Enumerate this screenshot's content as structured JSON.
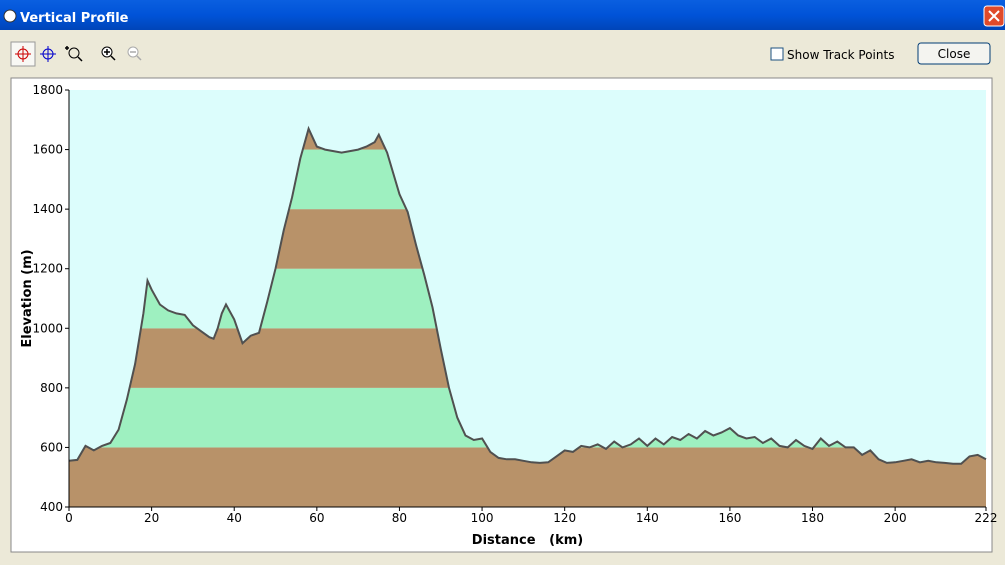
{
  "window": {
    "title": "Vertical Profile",
    "checkbox_label": "Show Track Points",
    "close_button": "Close"
  },
  "chart_data": {
    "type": "area",
    "xlabel": "Distance   (km)",
    "ylabel": "Elevation (m)",
    "x": [
      0,
      2,
      4,
      6,
      8,
      10,
      12,
      14,
      16,
      18,
      19,
      20,
      22,
      24,
      26,
      28,
      30,
      32,
      34,
      35,
      36,
      37,
      38,
      40,
      42,
      44,
      46,
      48,
      50,
      52,
      54,
      56,
      58,
      60,
      62,
      64,
      66,
      68,
      70,
      72,
      74,
      75,
      77,
      80,
      82,
      84,
      86,
      88,
      90,
      92,
      94,
      96,
      98,
      100,
      102,
      104,
      106,
      108,
      110,
      112,
      114,
      116,
      118,
      120,
      122,
      124,
      126,
      128,
      130,
      132,
      134,
      136,
      138,
      140,
      142,
      144,
      146,
      148,
      150,
      152,
      154,
      156,
      158,
      160,
      162,
      164,
      166,
      168,
      170,
      172,
      174,
      176,
      178,
      180,
      182,
      184,
      186,
      188,
      190,
      192,
      194,
      196,
      198,
      200,
      202,
      204,
      206,
      208,
      210,
      212,
      214,
      216,
      218,
      220,
      222
    ],
    "values": [
      555,
      558,
      605,
      590,
      605,
      615,
      660,
      760,
      880,
      1050,
      1160,
      1130,
      1080,
      1060,
      1050,
      1045,
      1010,
      990,
      970,
      965,
      1000,
      1050,
      1080,
      1030,
      950,
      975,
      985,
      1090,
      1200,
      1330,
      1440,
      1570,
      1670,
      1610,
      1600,
      1595,
      1590,
      1595,
      1600,
      1610,
      1625,
      1650,
      1590,
      1450,
      1390,
      1280,
      1180,
      1070,
      930,
      800,
      700,
      640,
      625,
      630,
      585,
      565,
      560,
      560,
      555,
      550,
      548,
      550,
      570,
      590,
      585,
      605,
      600,
      610,
      595,
      620,
      600,
      610,
      630,
      605,
      630,
      610,
      635,
      625,
      645,
      630,
      655,
      640,
      650,
      665,
      640,
      630,
      635,
      615,
      630,
      605,
      600,
      625,
      605,
      595,
      630,
      605,
      620,
      600,
      600,
      575,
      590,
      560,
      548,
      550,
      555,
      560,
      550,
      555,
      550,
      548,
      545,
      545,
      570,
      575,
      560
    ],
    "line_color": "#505050",
    "band_colors": [
      "#b89269",
      "#9ef0c0"
    ],
    "background": "#dcfdfc",
    "xlim": [
      0,
      222
    ],
    "ylim": [
      400,
      1800
    ],
    "xticks": [
      0,
      20,
      40,
      60,
      80,
      100,
      120,
      140,
      160,
      180,
      200,
      222
    ],
    "yticks": [
      400,
      600,
      800,
      1000,
      1200,
      1400,
      1600,
      1800
    ]
  }
}
